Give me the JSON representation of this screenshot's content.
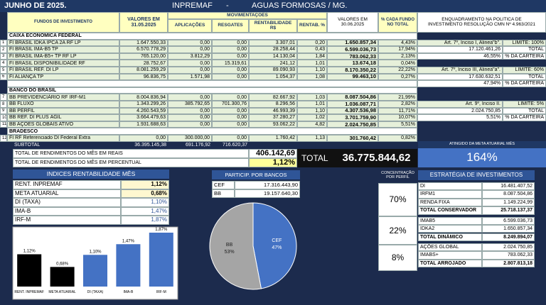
{
  "header": {
    "left": "JUNHO DE 2025.",
    "center": "INPREMAF",
    "separator": "-",
    "right": "AGUAS FORMOSAS / MG."
  },
  "table": {
    "columns": [
      "FUNDOS DE INVESTIMENTO",
      "VALORES EM 31.05.2025",
      "APLICAÇÕES",
      "RESGATES",
      "RENTABILIDADE R$",
      "RENTAB. %",
      "VALORES EM 30.06.2025",
      "% CADA FUNDO NO TOTAL",
      "ENQUADRAMENTO NA POLITICA DE INVESTIMENTO RESOLUÇÃO CMN Nº 4.963/2021"
    ],
    "group": "MOVIMENTAÇÕES",
    "sections": [
      {
        "name": "CAIXA ECONÔMICA FEDERAL",
        "rows": [
          [
            "1",
            "FI BRASIL IDKA IPCA 2A RF LP",
            "1.647.550,33",
            "0,00",
            "0,00",
            "3.307,01",
            "0,20",
            "1.650.857,34",
            "4,43%"
          ],
          [
            "2",
            "FI BRASIL IMA-B5 TP",
            "6.570.778,29",
            "0,00",
            "0,00",
            "28.258,44",
            "0,43",
            "6.599.036,73",
            "17,94%"
          ],
          [
            "3",
            "FI BRASIL IMA-B5+ TP RF LP",
            "765.120,00",
            "3.812,29",
            "0,00",
            "14.130,04",
            "1,84",
            "783.062,33",
            "2,13%"
          ],
          [
            "4",
            "FI BRASIL DISPONIBILIDADE RF",
            "28.752,67",
            "0,00",
            "15.319,61",
            "241,12",
            "1,01",
            "13.674,18",
            "0,04%"
          ],
          [
            "5",
            "FI BRASIL REF. DI LP",
            "8.081.259,29",
            "0,00",
            "0,00",
            "89.090,93",
            "1,10",
            "8.170.350,22",
            "22,22%"
          ],
          [
            "6",
            "FI ALIANÇA TP",
            "96.836,75",
            "1.571,98",
            "0,00",
            "1.054,37",
            "1,08",
            "99.463,10",
            "0,27%"
          ]
        ]
      },
      {
        "name": "BANCO DO BRASIL",
        "rows": [
          [
            "7",
            "BB PREVIDENCIÁRIO RF IRF-M1",
            "8.004.836,94",
            "0,00",
            "0,00",
            "82.667,92",
            "1,03",
            "8.087.504,86",
            "21,99%"
          ],
          [
            "8",
            "BB FLUXO",
            "1.343.299,26",
            "385.792,65",
            "701.300,76",
            "8.296,56",
            "1,01",
            "1.036.087,71",
            "2,82%"
          ],
          [
            "9",
            "BB PERFIL",
            "4.260.543,59",
            "0,00",
            "0,00",
            "46.993,39",
            "1,10",
            "4.307.536,98",
            "11,71%"
          ],
          [
            "10",
            "BB REF. DI PLUS ÁGIL",
            "3.664.479,63",
            "0,00",
            "0,00",
            "37.280,27",
            "1,02",
            "3.701.759,90",
            "10,07%"
          ],
          [
            "11",
            "BB AÇÕES GLOBAIS ATIVO",
            "1.931.688,63",
            "0,00",
            "0,00",
            "93.062,22",
            "4,82",
            "2.024.750,85",
            "5,51%"
          ]
        ]
      },
      {
        "name": "BRADESCO",
        "rows": [
          [
            "12",
            "FI RF Referenciado DI Federal Extra",
            "0,00",
            "300.000,00",
            "0,00",
            "1.760,42",
            "1,13",
            "301.760,42",
            "0,82%"
          ]
        ]
      }
    ],
    "subtotal": [
      "SUBTOTAL",
      "36.395.145,38",
      "691.176,92",
      "716.620,37"
    ],
    "compliance": [
      {
        "article": "Art. 7º, Inciso I, Alinea\"b\".",
        "limit": "LIMITE: 100%",
        "total": "17.120.461,26",
        "total_label": "TOTAL",
        "share": "46,55%",
        "share_label": "% DA CARTEIRA"
      },
      {
        "article": "Art. 7º, Inciso III, Alinea\"a\".",
        "limit": "LIMITE: 60%",
        "total": "17.630.632,51",
        "total_label": "TOTAL",
        "share": "47,94%",
        "share_label": "% DA CARTEIRA"
      },
      {
        "article": "Art. 9º, Inciso II.",
        "limit": "LIMITE: 5%",
        "total": "2.024.750,85",
        "total_label": "TOTAL",
        "share": "5,51%",
        "share_label": "% DA CARTEIRA"
      }
    ]
  },
  "totals": {
    "income_label": "TOTAL DE RENDIMENTOS DO MÊS EM REAIS",
    "income": "406.142,69",
    "percent_label": "TOTAL DE RENDIMENTOS DO MÊS EM PERCENTUAL",
    "percent": "1,12%",
    "total_label": "TOTAL",
    "total": "36.775.844,62",
    "target_label": "ATINGIDO DA META ATUARIAL MÊS",
    "target": "164%"
  },
  "indices_title": "INDICES RENTABILIDADE MÊS",
  "banks": {
    "title": "PARTICIP. POR BANCOS",
    "rows": [
      [
        "CEF",
        "17.316.443,90"
      ],
      [
        "BB",
        "19.157.640,30"
      ]
    ]
  },
  "concentration": {
    "title": "CONCENTRAÇÃO POR PERFIL",
    "values": [
      "70%",
      "22%",
      "8%"
    ]
  },
  "strategy": {
    "title": "ESTRATÉGIA DE INVESTIMENTOS",
    "groups": [
      {
        "items": [
          [
            "DI",
            "16.481.407,52"
          ],
          [
            "IRFM1",
            "8.087.504,86"
          ],
          [
            "RENDA FIXA",
            "1.149.224,99"
          ]
        ],
        "total": [
          "TOTAL CONSERVADOR",
          "25.718.137,37"
        ]
      },
      {
        "items": [
          [
            "IMAB5",
            "6.599.036,73"
          ],
          [
            "IDKA2",
            "1.650.857,34"
          ]
        ],
        "total": [
          "TOTAL DINÂMICO",
          "8.249.894,07"
        ]
      },
      {
        "items": [
          [
            "AÇÕES GLOBAL",
            "2.024.750,85"
          ],
          [
            "IMABS+",
            "783.062,33"
          ]
        ],
        "total": [
          "TOTAL ARROJADO",
          "2.807.813,18"
        ]
      }
    ]
  },
  "chart_data": [
    {
      "type": "bar",
      "categories": [
        "RENT.  INPREMAF",
        "META ATUARIAL",
        "DI (TAXA)",
        "IMA-B",
        "IRF-M"
      ],
      "values": [
        1.12,
        0.68,
        1.1,
        1.47,
        1.87
      ],
      "value_labels": [
        "1,12%",
        "0,68%",
        "1,10%",
        "1,47%",
        "1,87%"
      ],
      "colors": [
        "#000000",
        "#000000",
        "#4472c4",
        "#4472c4",
        "#4472c4"
      ]
    },
    {
      "type": "pie",
      "categories": [
        "CEF",
        "BB"
      ],
      "values": [
        47,
        53
      ],
      "value_labels": [
        "47%",
        "53%"
      ],
      "colors": [
        "#4472c4",
        "#a5a5a5"
      ]
    }
  ]
}
